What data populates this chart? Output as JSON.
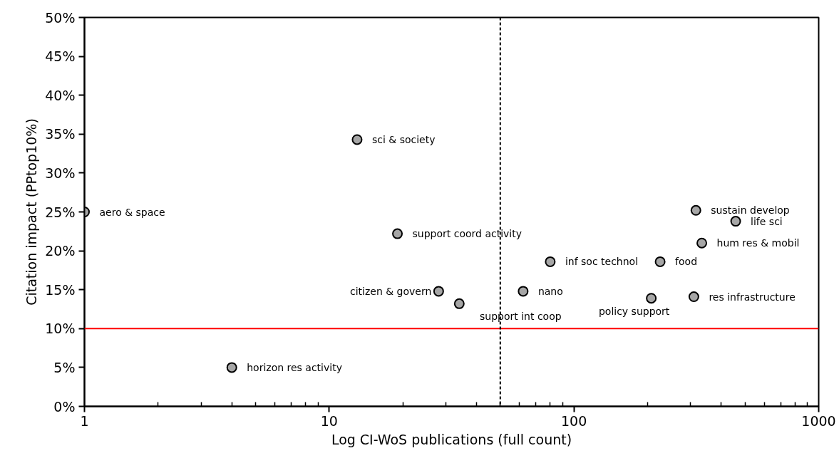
{
  "chart_data": {
    "type": "scatter",
    "xlabel": "Log CI-WoS publications (full count)",
    "ylabel": "Citation impact (PPtop10%)",
    "x": [
      1,
      13,
      19,
      4,
      28,
      34,
      62,
      80,
      225,
      207,
      309,
      315,
      458,
      333
    ],
    "series": [
      {
        "color": "#a6a6a6",
        "values": [
          25.0,
          34.3,
          22.2,
          5.0,
          14.8,
          13.2,
          14.8,
          18.6,
          18.6,
          13.9,
          14.1,
          25.2,
          23.8,
          21.0
        ]
      }
    ],
    "annotations": [
      {
        "text": "aero & space",
        "x": 1,
        "y": 25.0
      },
      {
        "text": "sci & society",
        "x": 13,
        "y": 34.3
      },
      {
        "text": "support coord activity",
        "x": 19,
        "y": 22.2
      },
      {
        "text": "horizon res activity",
        "x": 4,
        "y": 5.0
      },
      {
        "text": "citizen & govern",
        "x": 28,
        "y": 14.8
      },
      {
        "text": "support int coop",
        "x": 34,
        "y": 13.2
      },
      {
        "text": "nano",
        "x": 62,
        "y": 14.8
      },
      {
        "text": "inf soc technol",
        "x": 80,
        "y": 18.6
      },
      {
        "text": "food",
        "x": 225,
        "y": 18.6
      },
      {
        "text": "policy support",
        "x": 207,
        "y": 13.9
      },
      {
        "text": "res infrastructure",
        "x": 309,
        "y": 14.1
      },
      {
        "text": "sustain develop",
        "x": 315,
        "y": 25.2
      },
      {
        "text": "life sci",
        "x": 458,
        "y": 23.8
      },
      {
        "text": "hum res & mobil",
        "x": 333,
        "y": 21.0
      }
    ],
    "log": "x",
    "xlim": [
      1,
      1000
    ],
    "xticks": [
      1,
      10,
      100,
      1000
    ],
    "ylim": [
      0,
      50
    ],
    "yticks": [
      {
        "value": 0,
        "label": "0%"
      },
      {
        "value": 5,
        "label": "5%"
      },
      {
        "value": 10,
        "label": "10%"
      },
      {
        "value": 15,
        "label": "15%"
      },
      {
        "value": 20,
        "label": "20%"
      },
      {
        "value": 25,
        "label": "25%"
      },
      {
        "value": 30,
        "label": "30%"
      },
      {
        "value": 35,
        "label": "35%"
      },
      {
        "value": 40,
        "label": "40%"
      },
      {
        "value": 45,
        "label": "45%"
      },
      {
        "value": 50,
        "label": "50%"
      }
    ],
    "ref_lines": [
      {
        "axis": "y",
        "value": 10,
        "color": "#ff0000",
        "line_style": "solid"
      },
      {
        "axis": "x",
        "value": 50,
        "color": "#000000",
        "line_style": "dashed"
      }
    ],
    "grid": false,
    "marker": "circle"
  }
}
